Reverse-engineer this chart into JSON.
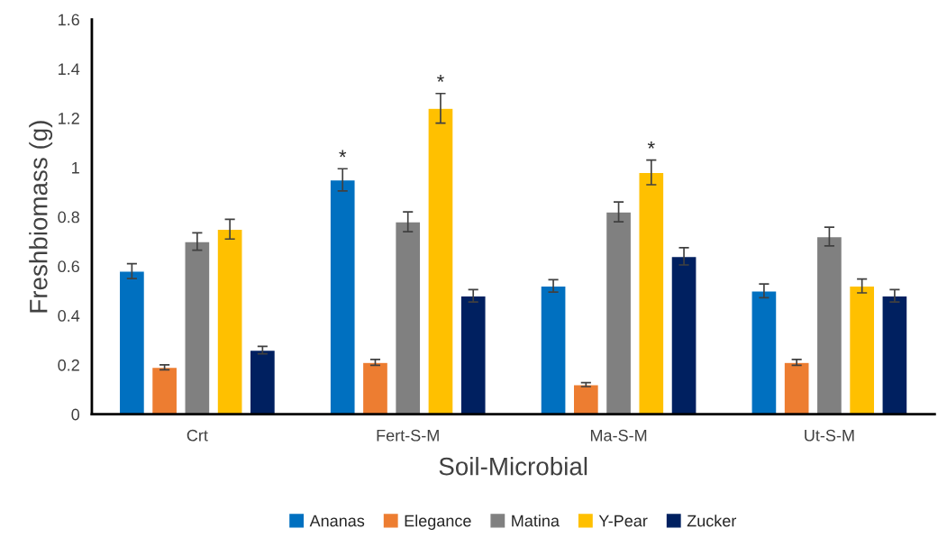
{
  "chart_data": {
    "type": "bar",
    "xlabel": "Soil-Microbial",
    "ylabel": "Freshbiomass (g)",
    "categories": [
      "Crt",
      "Fert-S-M",
      "Ma-S-M",
      "Ut-S-M"
    ],
    "series": [
      {
        "name": "Ananas",
        "color": "#0070c0",
        "values": [
          0.58,
          0.95,
          0.52,
          0.5
        ],
        "errors": [
          0.03,
          0.045,
          0.025,
          0.028
        ],
        "value_labels": [
          null,
          "*",
          null,
          null
        ]
      },
      {
        "name": "Elegance",
        "color": "#ed7d31",
        "values": [
          0.19,
          0.21,
          0.12,
          0.21
        ],
        "errors": [
          0.01,
          0.012,
          0.008,
          0.012
        ]
      },
      {
        "name": "Matina",
        "color": "#808080",
        "values": [
          0.7,
          0.78,
          0.82,
          0.72
        ],
        "errors": [
          0.035,
          0.04,
          0.04,
          0.038
        ]
      },
      {
        "name": "Y-Pear",
        "color": "#ffc000",
        "values": [
          0.75,
          1.24,
          0.98,
          0.52
        ],
        "errors": [
          0.04,
          0.06,
          0.05,
          0.028
        ],
        "value_labels": [
          null,
          "*",
          "*",
          null
        ]
      },
      {
        "name": "Zucker",
        "color": "#002060",
        "values": [
          0.26,
          0.48,
          0.64,
          0.48
        ],
        "errors": [
          0.015,
          0.025,
          0.035,
          0.025
        ]
      }
    ],
    "ylim": [
      0,
      1.6
    ],
    "yticks": [
      0,
      0.2,
      0.4,
      0.6,
      0.8,
      1,
      1.2,
      1.4,
      1.6
    ],
    "grid": false,
    "legend": "bottom"
  }
}
